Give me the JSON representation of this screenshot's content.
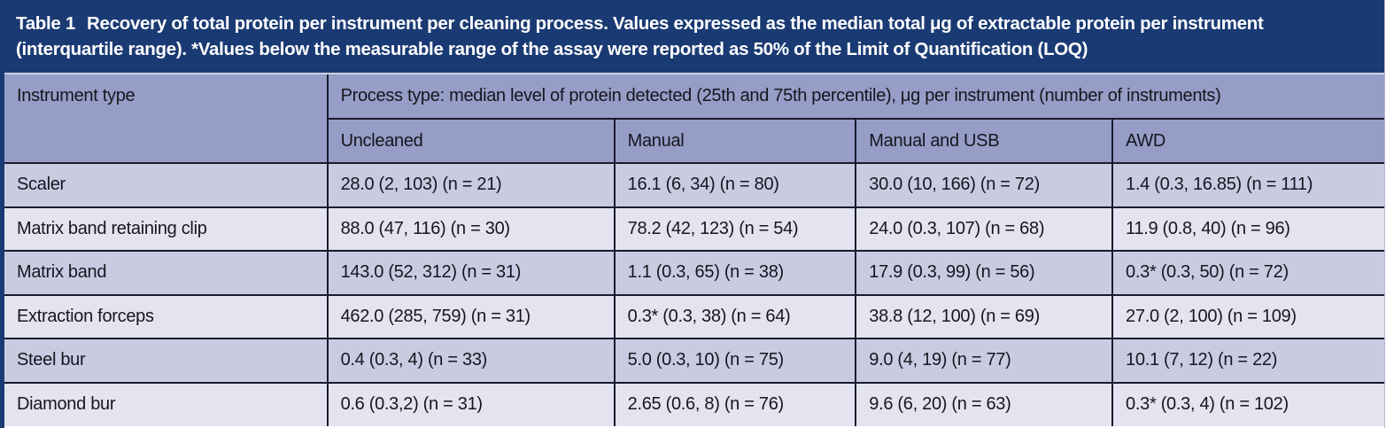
{
  "caption": {
    "label": "Table 1",
    "text": "Recovery of total protein per instrument per cleaning process. Values expressed as the median total μg of extractable protein per instrument (interquartile range). *Values below the measurable range of the assay were reported as 50% of the Limit of Quantification (LOQ)"
  },
  "table": {
    "instrument_type_header": "Instrument type",
    "process_type_header": "Process type: median level of protein detected (25th and 75th percentile), μg per instrument (number of instruments)",
    "process_columns": [
      "Uncleaned",
      "Manual",
      "Manual and USB",
      "AWD"
    ],
    "rows": [
      {
        "instrument": "Scaler",
        "values": [
          "28.0 (2, 103) (n = 21)",
          "16.1 (6, 34) (n = 80)",
          "30.0 (10, 166) (n = 72)",
          "1.4 (0.3, 16.85) (n = 111)"
        ]
      },
      {
        "instrument": "Matrix band retaining clip",
        "values": [
          "88.0 (47, 116) (n = 30)",
          "78.2 (42, 123) (n = 54)",
          "24.0 (0.3, 107) (n = 68)",
          "11.9 (0.8, 40) (n = 96)"
        ]
      },
      {
        "instrument": "Matrix band",
        "values": [
          "143.0 (52, 312) (n = 31)",
          "1.1 (0.3, 65) (n = 38)",
          "17.9 (0.3, 99) (n = 56)",
          "0.3* (0.3, 50) (n = 72)"
        ]
      },
      {
        "instrument": "Extraction forceps",
        "values": [
          "462.0 (285, 759) (n = 31)",
          "0.3* (0.3, 38) (n = 64)",
          "38.8 (12, 100) (n = 69)",
          "27.0 (2, 100) (n = 109)"
        ]
      },
      {
        "instrument": "Steel bur",
        "values": [
          "0.4 (0.3, 4) (n = 33)",
          "5.0 (0.3, 10) (n = 75)",
          "9.0 (4, 19) (n = 77)",
          "10.1 (7, 12) (n = 22)"
        ]
      },
      {
        "instrument": "Diamond bur",
        "values": [
          "0.6 (0.3,2) (n = 31)",
          "2.65 (0.6, 8) (n = 76)",
          "9.6 (6, 20) (n = 63)",
          "0.3* (0.3, 4) (n = 102)"
        ]
      }
    ]
  },
  "colors": {
    "caption_bg": "#1a3a73",
    "header_bg": "#969dc6",
    "row_odd_bg": "#c9cce1",
    "row_even_bg": "#e3e4f0",
    "grid_line": "#1a1a2e",
    "caption_text": "#ffffff",
    "body_text": "#16161f"
  }
}
